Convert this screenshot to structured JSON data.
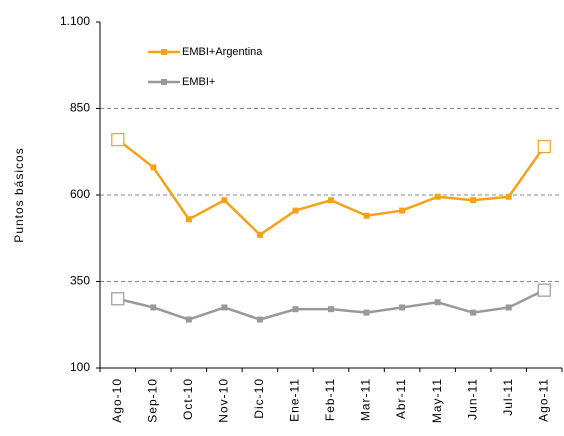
{
  "chart_data": {
    "type": "line",
    "ylabel": "Puntos básicos",
    "categories": [
      "Ago-10",
      "Sep-10",
      "Oct-10",
      "Nov-10",
      "Dic-10",
      "Ene-11",
      "Feb-11",
      "Mar-11",
      "Abr-11",
      "May-11",
      "Jun-11",
      "Jul-11",
      "Ago-11"
    ],
    "series": [
      {
        "name": "EMBI+Argentina",
        "color": "#f7a11a",
        "values": [
          760,
          680,
          530,
          585,
          485,
          555,
          585,
          540,
          555,
          595,
          585,
          595,
          740
        ]
      },
      {
        "name": "EMBI+",
        "color": "#999999",
        "values": [
          300,
          275,
          240,
          275,
          240,
          270,
          270,
          260,
          275,
          290,
          260,
          275,
          325
        ]
      }
    ],
    "ylim": [
      100,
      1100
    ],
    "yticks": [
      100,
      350,
      600,
      850,
      {
        "value": 1100,
        "label": "1.100"
      }
    ],
    "grid": true,
    "legend": "upper left"
  }
}
